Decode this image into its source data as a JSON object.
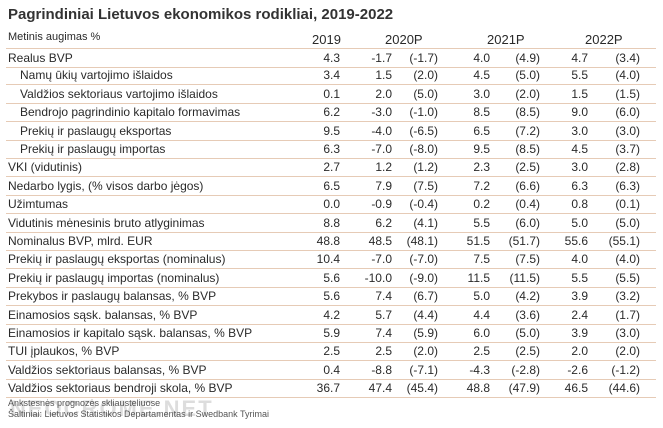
{
  "header": {
    "title": "Pagrindiniai Lietuvos ekonomikos rodikliai, 2019-2022",
    "subtitle": "Metinis augimas %",
    "columns": [
      "2019",
      "2020P",
      "2021P",
      "2022P"
    ]
  },
  "table": {
    "rows": [
      [
        "Realus BVP",
        "4.3",
        "-1.7",
        "(-1.7)",
        "4.0",
        "(4.9)",
        "4.7",
        "(3.4)"
      ],
      [
        "Namų ūkių vartojimo išlaidos",
        "3.4",
        "1.5",
        "(2.0)",
        "4.5",
        "(5.0)",
        "5.5",
        "(4.0)"
      ],
      [
        "Valdžios sektoriaus vartojimo išlaidos",
        "0.1",
        "2.0",
        "(5.0)",
        "3.0",
        "(2.0)",
        "1.5",
        "(1.5)"
      ],
      [
        "Bendrojo pagrindinio kapitalo formavimas",
        "6.2",
        "-3.0",
        "(-1.0)",
        "8.5",
        "(8.5)",
        "9.0",
        "(6.0)"
      ],
      [
        "Prekių ir paslaugų eksportas",
        "9.5",
        "-4.0",
        "(-6.5)",
        "6.5",
        "(7.2)",
        "3.0",
        "(3.0)"
      ],
      [
        "Prekių ir paslaugų importas",
        "6.3",
        "-7.0",
        "(-8.0)",
        "9.5",
        "(8.5)",
        "4.5",
        "(3.7)"
      ],
      [
        "VKI (vidutinis)",
        "2.7",
        "1.2",
        "(1.2)",
        "2.3",
        "(2.5)",
        "3.0",
        "(2.8)"
      ],
      [
        "Nedarbo lygis, (% visos darbo jėgos)",
        "6.5",
        "7.9",
        "(7.5)",
        "7.2",
        "(6.6)",
        "6.3",
        "(6.3)"
      ],
      [
        "Užimtumas",
        "0.0",
        "-0.9",
        "(-0.4)",
        "0.2",
        "(0.4)",
        "0.8",
        "(0.1)"
      ],
      [
        "Vidutinis mėnesinis bruto atlyginimas",
        "8.8",
        "6.2",
        "(4.1)",
        "5.5",
        "(6.0)",
        "5.0",
        "(5.0)"
      ],
      [
        "Nominalus BVP, mlrd. EUR",
        "48.8",
        "48.5",
        "(48.1)",
        "51.5",
        "(51.7)",
        "55.6",
        "(55.1)"
      ],
      [
        "Prekių ir paslaugų eksportas (nominalus)",
        "10.4",
        "-7.0",
        "(-7.0)",
        "7.5",
        "(7.5)",
        "4.0",
        "(4.0)"
      ],
      [
        "Prekių ir paslaugų importas (nominalus)",
        "5.6",
        "-10.0",
        "(-9.0)",
        "11.5",
        "(11.5)",
        "5.5",
        "(5.5)"
      ],
      [
        "Prekybos ir paslaugų balansas, % BVP",
        "5.6",
        "7.4",
        "(6.7)",
        "5.0",
        "(4.2)",
        "3.9",
        "(3.2)"
      ],
      [
        "Einamosios sąsk. balansas, % BVP",
        "4.2",
        "5.7",
        "(4.4)",
        "4.4",
        "(3.6)",
        "2.4",
        "(1.7)"
      ],
      [
        "Einamosios ir kapitalo sąsk. balansas, % BVP",
        "5.9",
        "7.4",
        "(5.9)",
        "6.0",
        "(5.0)",
        "3.9",
        "(3.0)"
      ],
      [
        "TUI įplaukos, % BVP",
        "2.5",
        "2.5",
        "(2.0)",
        "2.5",
        "(2.5)",
        "2.0",
        "(2.0)"
      ],
      [
        "Valdžios sektoriaus balansas, % BVP",
        "0.4",
        "-8.8",
        "(-7.1)",
        "-4.3",
        "(-2.8)",
        "-2.6",
        "(-1.2)"
      ],
      [
        "Valdžios sektoriaus bendroji skola, % BVP",
        "36.7",
        "47.4",
        "(45.4)",
        "48.8",
        "(47.9)",
        "46.5",
        "(44.6)"
      ]
    ]
  },
  "footer": {
    "notes": [
      "Ankstesnės prognozės skliausteliuose",
      "Šaltiniai: Lietuvos Statistikos Departamentas ir Swedbank Tyrimai"
    ],
    "watermark": "NEOCROME.NET"
  }
}
